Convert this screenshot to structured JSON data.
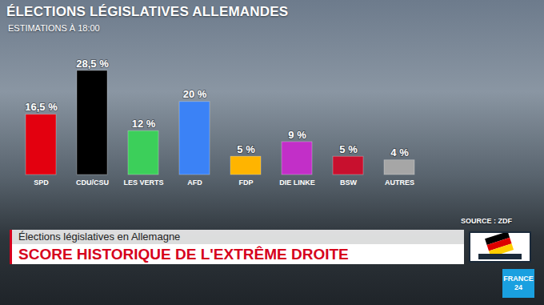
{
  "chart_data": {
    "type": "bar",
    "title": "ÉLECTIONS LÉGISLATIVES ALLEMANDES",
    "subtitle": "ESTIMATIONS À 18:00",
    "categories": [
      "SPD",
      "CDU/CSU",
      "LES VERTS",
      "AFD",
      "FDP",
      "DIE LINKE",
      "BSW",
      "AUTRES"
    ],
    "values": [
      16.5,
      28.5,
      12,
      20,
      5,
      9,
      5,
      4
    ],
    "value_labels": [
      "16,5 %",
      "28,5 %",
      "12 %",
      "20 %",
      "5 %",
      "9 %",
      "5 %",
      "4 %"
    ],
    "colors": [
      "#e3000f",
      "#000000",
      "#3ccf5a",
      "#3b82f6",
      "#ffb400",
      "#c22fc8",
      "#c8102e",
      "#a6a6a6"
    ],
    "data_labels": true,
    "tick_labels": "x",
    "grid": false,
    "annotations": {
      "source": "SOURCE : ZDF",
      "kicker": "Élections législatives en Allemagne",
      "headline": "SCORE HISTORIQUE DE L'EXTRÊME DROITE",
      "logo": "FRANCE 24"
    }
  }
}
